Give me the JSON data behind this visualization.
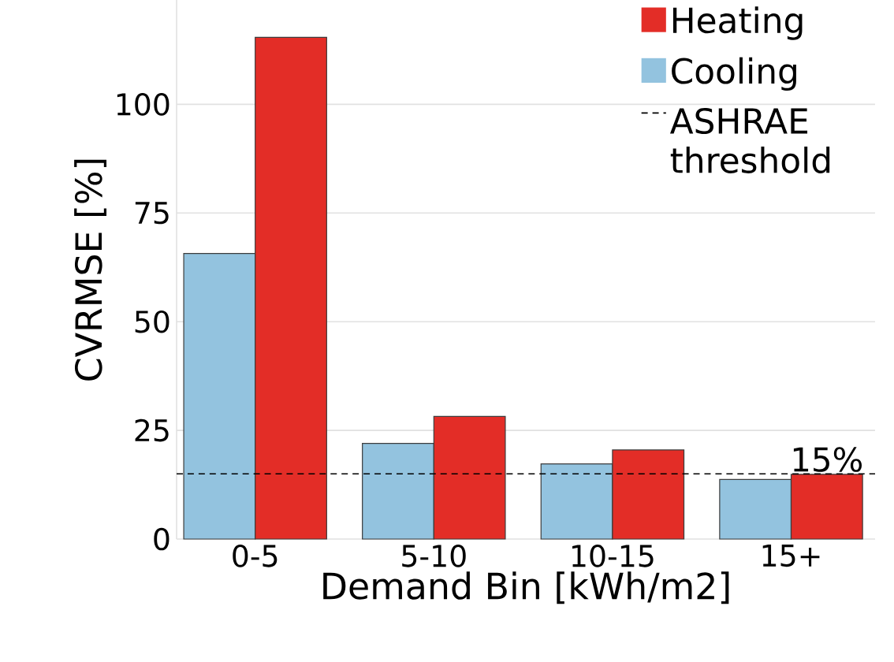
{
  "chart_data": {
    "type": "bar",
    "xlabel": "Demand Bin [kWh/m2]",
    "ylabel": "CVRMSE [%]",
    "categories": [
      "0-5",
      "5-10",
      "10-15",
      "15+"
    ],
    "series": [
      {
        "name": "Cooling",
        "color": "#93c3df",
        "values": [
          65.7,
          22.0,
          17.3,
          13.7
        ]
      },
      {
        "name": "Heating",
        "color": "#e32d27",
        "values": [
          115.4,
          28.2,
          20.5,
          14.9
        ]
      }
    ],
    "ylim": [
      0,
      124
    ],
    "yticks": [
      0,
      25,
      50,
      75,
      100
    ],
    "grid": "y",
    "legend": "top right",
    "ref_lines": [
      {
        "axis": "y",
        "value": 15,
        "label": "ASHRAE threshold",
        "color": "#000000",
        "line_style": "dashed"
      }
    ],
    "annotations": [
      {
        "text": "15%",
        "x": "15+",
        "y": 15
      }
    ]
  }
}
